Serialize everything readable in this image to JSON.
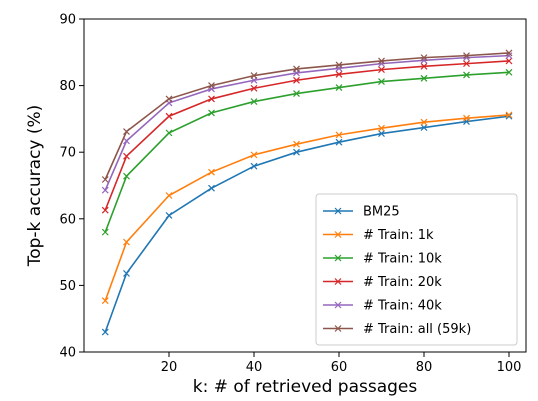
{
  "chart_data": {
    "type": "line",
    "xlabel": "k: # of retrieved passages",
    "ylabel": "Top-k accuracy (%)",
    "xlim": [
      0,
      104
    ],
    "ylim": [
      40,
      90
    ],
    "x_ticks": [
      20,
      40,
      60,
      80,
      100
    ],
    "y_ticks": [
      40,
      50,
      60,
      70,
      80,
      90
    ],
    "grid": false,
    "legend_position": "bottom-right",
    "marker": "x",
    "x": [
      5,
      10,
      20,
      30,
      40,
      50,
      60,
      70,
      80,
      90,
      100
    ],
    "series": [
      {
        "name": "BM25",
        "color": "#1f77b4",
        "values": [
          43.0,
          51.8,
          60.5,
          64.6,
          67.9,
          70.0,
          71.5,
          72.8,
          73.7,
          74.6,
          75.4
        ]
      },
      {
        "name": "# Train: 1k",
        "color": "#ff7f0e",
        "values": [
          47.7,
          56.5,
          63.5,
          67.0,
          69.6,
          71.2,
          72.6,
          73.6,
          74.5,
          75.1,
          75.6
        ]
      },
      {
        "name": "# Train: 10k",
        "color": "#2ca02c",
        "values": [
          58.0,
          66.4,
          72.9,
          75.9,
          77.6,
          78.8,
          79.7,
          80.6,
          81.1,
          81.6,
          82.0
        ]
      },
      {
        "name": "# Train: 20k",
        "color": "#d62728",
        "values": [
          61.3,
          69.4,
          75.4,
          78.0,
          79.6,
          80.8,
          81.7,
          82.4,
          82.9,
          83.3,
          83.7
        ]
      },
      {
        "name": "# Train: 40k",
        "color": "#9467bd",
        "values": [
          64.3,
          71.7,
          77.4,
          79.5,
          80.8,
          81.9,
          82.6,
          83.3,
          83.8,
          84.2,
          84.5
        ]
      },
      {
        "name": "# Train: all (59k)",
        "color": "#8c564b",
        "values": [
          65.9,
          73.1,
          78.0,
          80.0,
          81.5,
          82.5,
          83.1,
          83.7,
          84.2,
          84.5,
          84.9
        ]
      }
    ]
  }
}
